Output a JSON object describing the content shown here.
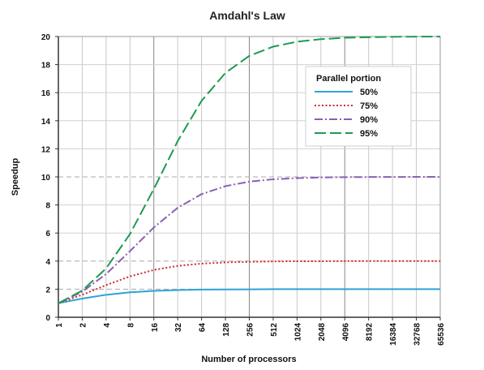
{
  "chart_data": {
    "type": "line",
    "title": "Amdahl's Law",
    "xlabel": "Number of processors",
    "ylabel": "Speedup",
    "x_scale": "log2",
    "x": [
      1,
      2,
      4,
      8,
      16,
      32,
      64,
      128,
      256,
      512,
      1024,
      2048,
      4096,
      8192,
      16384,
      32768,
      65536
    ],
    "x_tick_labels": [
      "1",
      "2",
      "4",
      "8",
      "16",
      "32",
      "64",
      "128",
      "256",
      "512",
      "1024",
      "2048",
      "4096",
      "8192",
      "16384",
      "32768",
      "65536"
    ],
    "ylim": [
      0,
      20
    ],
    "y_ticks": [
      0,
      2,
      4,
      6,
      8,
      10,
      12,
      14,
      16,
      18,
      20
    ],
    "grid": true,
    "legend": {
      "title": "Parallel portion",
      "placement": "top-right"
    },
    "series": [
      {
        "name": "50%",
        "color": "#2ea3d6",
        "style": "solid",
        "values": [
          1.0,
          1.33,
          1.6,
          1.78,
          1.88,
          1.94,
          1.97,
          1.98,
          1.99,
          2.0,
          2.0,
          2.0,
          2.0,
          2.0,
          2.0,
          2.0,
          2.0
        ]
      },
      {
        "name": "75%",
        "color": "#d62728",
        "style": "dotted",
        "values": [
          1.0,
          1.6,
          2.29,
          2.91,
          3.37,
          3.66,
          3.82,
          3.91,
          3.95,
          3.98,
          3.99,
          3.99,
          4.0,
          4.0,
          4.0,
          4.0,
          4.0
        ]
      },
      {
        "name": "90%",
        "color": "#8b5fb4",
        "style": "dashdot",
        "values": [
          1.0,
          1.82,
          3.08,
          4.71,
          6.4,
          7.8,
          8.77,
          9.34,
          9.66,
          9.83,
          9.91,
          9.96,
          9.98,
          9.99,
          9.99,
          10.0,
          10.0
        ]
      },
      {
        "name": "95%",
        "color": "#1e9a52",
        "style": "dashed",
        "values": [
          1.0,
          1.9,
          3.48,
          5.93,
          9.14,
          12.55,
          15.42,
          17.41,
          18.62,
          19.28,
          19.63,
          19.81,
          19.91,
          19.95,
          19.98,
          19.99,
          19.99
        ]
      }
    ]
  }
}
